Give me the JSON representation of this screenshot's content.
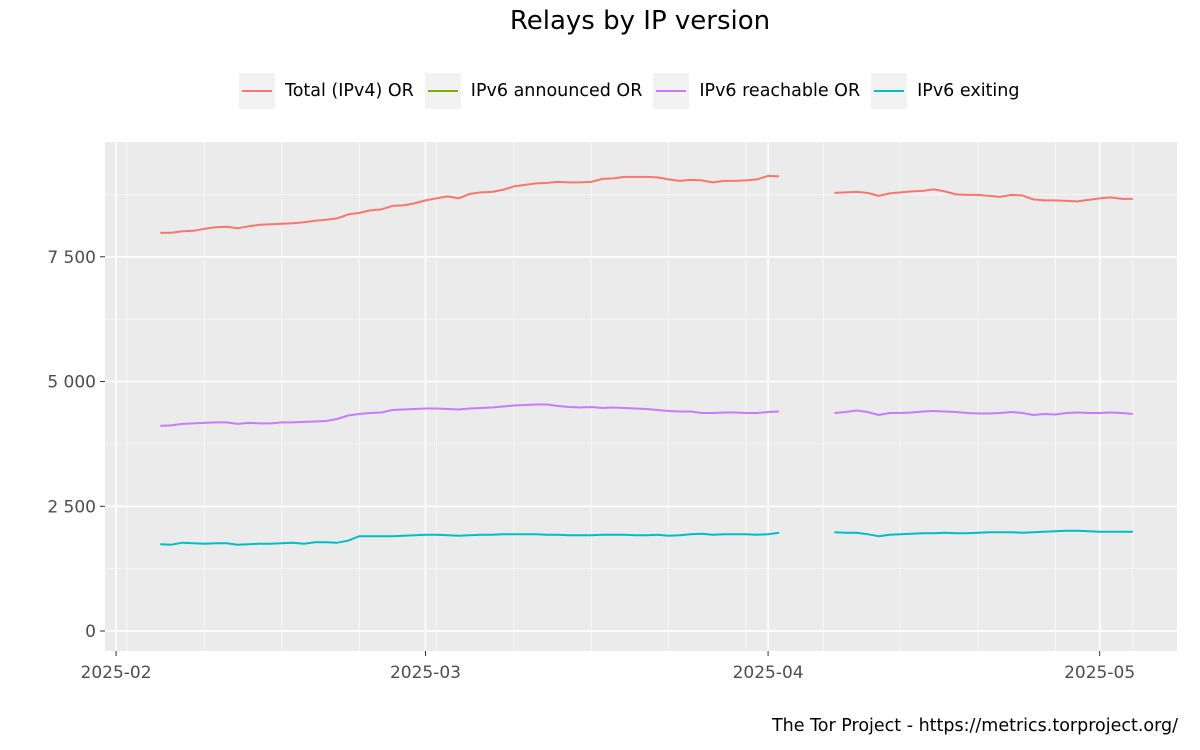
{
  "chart_data": {
    "type": "line",
    "title": "Relays by IP version",
    "caption": "The Tor Project - https://metrics.torproject.org/",
    "xlabel": "",
    "ylabel": "",
    "ylim": [
      -400,
      9800
    ],
    "xlim": [
      "2025-01-31",
      "2025-05-08"
    ],
    "grid": true,
    "legend_position": "top",
    "x_ticks": [
      "2025-02",
      "2025-03",
      "2025-04",
      "2025-05"
    ],
    "y_ticks": [
      {
        "value": 0,
        "label": "0"
      },
      {
        "value": 2500,
        "label": "2 500"
      },
      {
        "value": 5000,
        "label": "5 000"
      },
      {
        "value": 7500,
        "label": "7 500"
      }
    ],
    "series": [
      {
        "name": "Total (IPv4) OR",
        "color": "#F8766D",
        "segments": [
          {
            "start": "2025-02-05",
            "values": [
              7980,
              7980,
              8010,
              8020,
              8060,
              8090,
              8100,
              8070,
              8110,
              8140,
              8150,
              8160,
              8170,
              8190,
              8220,
              8240,
              8270,
              8350,
              8380,
              8430,
              8450,
              8520,
              8530,
              8570,
              8630,
              8670,
              8710,
              8670,
              8760,
              8790,
              8800,
              8840,
              8910,
              8940,
              8970,
              8980,
              9000,
              8990,
              8990,
              9000,
              9060,
              9070,
              9100,
              9100,
              9100,
              9090,
              9050,
              9020,
              9040,
              9030,
              8990,
              9020,
              9020,
              9030,
              9050,
              9120,
              9110
            ]
          },
          {
            "start": "2025-04-07",
            "values": [
              8780,
              8790,
              8800,
              8780,
              8720,
              8770,
              8790,
              8810,
              8820,
              8850,
              8810,
              8750,
              8740,
              8740,
              8720,
              8700,
              8740,
              8730,
              8650,
              8630,
              8630,
              8620,
              8610,
              8640,
              8670,
              8690,
              8660,
              8660
            ]
          }
        ]
      },
      {
        "name": "IPv6 announced OR",
        "color": "#7CAE00",
        "segments": []
      },
      {
        "name": "IPv6 reachable OR",
        "color": "#C77CFF",
        "segments": [
          {
            "start": "2025-02-05",
            "values": [
              4110,
              4120,
              4150,
              4160,
              4170,
              4180,
              4180,
              4150,
              4170,
              4160,
              4160,
              4180,
              4180,
              4190,
              4200,
              4210,
              4250,
              4320,
              4350,
              4370,
              4380,
              4430,
              4440,
              4450,
              4460,
              4460,
              4450,
              4440,
              4460,
              4470,
              4480,
              4500,
              4520,
              4530,
              4540,
              4540,
              4510,
              4490,
              4480,
              4490,
              4470,
              4480,
              4470,
              4460,
              4450,
              4430,
              4410,
              4400,
              4400,
              4370,
              4370,
              4380,
              4380,
              4370,
              4370,
              4390,
              4400
            ]
          },
          {
            "start": "2025-04-07",
            "values": [
              4370,
              4390,
              4420,
              4390,
              4330,
              4370,
              4370,
              4380,
              4400,
              4410,
              4400,
              4390,
              4370,
              4360,
              4360,
              4370,
              4390,
              4370,
              4330,
              4350,
              4340,
              4370,
              4380,
              4370,
              4370,
              4380,
              4370,
              4350
            ]
          }
        ]
      },
      {
        "name": "IPv6 exiting",
        "color": "#00BFC4",
        "segments": [
          {
            "start": "2025-02-05",
            "values": [
              1740,
              1730,
              1770,
              1760,
              1750,
              1760,
              1760,
              1730,
              1740,
              1750,
              1750,
              1760,
              1770,
              1750,
              1780,
              1780,
              1770,
              1810,
              1900,
              1900,
              1900,
              1900,
              1910,
              1920,
              1930,
              1930,
              1920,
              1910,
              1920,
              1930,
              1930,
              1940,
              1940,
              1940,
              1940,
              1930,
              1930,
              1920,
              1920,
              1920,
              1930,
              1930,
              1930,
              1920,
              1920,
              1930,
              1910,
              1920,
              1940,
              1950,
              1930,
              1940,
              1940,
              1940,
              1930,
              1940,
              1970
            ]
          },
          {
            "start": "2025-04-07",
            "values": [
              1980,
              1970,
              1970,
              1940,
              1900,
              1930,
              1940,
              1950,
              1960,
              1960,
              1970,
              1960,
              1960,
              1970,
              1980,
              1980,
              1980,
              1970,
              1980,
              1990,
              2000,
              2010,
              2010,
              2000,
              1990,
              1990,
              1990,
              1990
            ]
          }
        ]
      }
    ]
  }
}
